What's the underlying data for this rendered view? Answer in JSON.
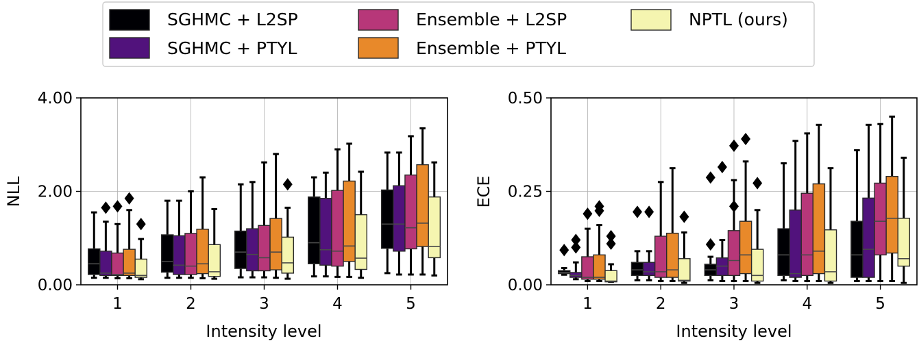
{
  "legend": {
    "entries": [
      {
        "label": "SGHMC + L2SP",
        "color": "#000004"
      },
      {
        "label": "SGHMC + PTYL",
        "color": "#51127c"
      },
      {
        "label": "Ensemble + L2SP",
        "color": "#b73779"
      },
      {
        "label": "Ensemble + PTYL",
        "color": "#e8892a"
      },
      {
        "label": "NPTL (ours)",
        "color": "#f5f5b0"
      }
    ]
  },
  "chart_data": [
    {
      "type": "box",
      "xlabel": "Intensity level",
      "ylabel": "NLL",
      "ylim": [
        0,
        4.0
      ],
      "yticks": [
        "0.00",
        "2.00",
        "4.00"
      ],
      "yticks_values": [
        0,
        2,
        4
      ],
      "categories": [
        "1",
        "2",
        "3",
        "4",
        "5"
      ],
      "grid": true,
      "series": [
        {
          "name": "SGHMC + L2SP",
          "color": "#000004",
          "boxes": [
            {
              "wlo": 0.15,
              "q1": 0.22,
              "med": 0.45,
              "q3": 0.77,
              "whi": 1.55,
              "fliers": []
            },
            {
              "wlo": 0.15,
              "q1": 0.27,
              "med": 0.5,
              "q3": 1.07,
              "whi": 1.8,
              "fliers": []
            },
            {
              "wlo": 0.16,
              "q1": 0.35,
              "med": 0.7,
              "q3": 1.15,
              "whi": 2.15,
              "fliers": []
            },
            {
              "wlo": 0.18,
              "q1": 0.45,
              "med": 0.9,
              "q3": 1.88,
              "whi": 2.3,
              "fliers": []
            },
            {
              "wlo": 0.25,
              "q1": 0.78,
              "med": 1.3,
              "q3": 2.03,
              "whi": 2.83,
              "fliers": []
            }
          ]
        },
        {
          "name": "SGHMC + PTYL",
          "color": "#51127c",
          "boxes": [
            {
              "wlo": 0.15,
              "q1": 0.2,
              "med": 0.25,
              "q3": 0.72,
              "whi": 1.35,
              "fliers": [
                1.65
              ]
            },
            {
              "wlo": 0.15,
              "q1": 0.22,
              "med": 0.42,
              "q3": 1.05,
              "whi": 1.8,
              "fliers": []
            },
            {
              "wlo": 0.16,
              "q1": 0.3,
              "med": 0.65,
              "q3": 1.2,
              "whi": 2.2,
              "fliers": []
            },
            {
              "wlo": 0.18,
              "q1": 0.42,
              "med": 0.75,
              "q3": 1.85,
              "whi": 2.4,
              "fliers": []
            },
            {
              "wlo": 0.22,
              "q1": 0.72,
              "med": 1.3,
              "q3": 2.12,
              "whi": 2.83,
              "fliers": []
            }
          ]
        },
        {
          "name": "Ensemble + L2SP",
          "color": "#b73779",
          "boxes": [
            {
              "wlo": 0.14,
              "q1": 0.2,
              "med": 0.22,
              "q3": 0.68,
              "whi": 1.3,
              "fliers": [
                1.68
              ]
            },
            {
              "wlo": 0.15,
              "q1": 0.22,
              "med": 0.4,
              "q3": 1.1,
              "whi": 2.0,
              "fliers": []
            },
            {
              "wlo": 0.16,
              "q1": 0.3,
              "med": 0.58,
              "q3": 1.27,
              "whi": 2.62,
              "fliers": []
            },
            {
              "wlo": 0.17,
              "q1": 0.4,
              "med": 0.72,
              "q3": 2.02,
              "whi": 2.9,
              "fliers": []
            },
            {
              "wlo": 0.22,
              "q1": 0.77,
              "med": 1.22,
              "q3": 2.35,
              "whi": 3.18,
              "fliers": []
            }
          ]
        },
        {
          "name": "Ensemble + PTYL",
          "color": "#e8892a",
          "boxes": [
            {
              "wlo": 0.14,
              "q1": 0.2,
              "med": 0.25,
              "q3": 0.76,
              "whi": 1.6,
              "fliers": [
                1.85
              ]
            },
            {
              "wlo": 0.14,
              "q1": 0.24,
              "med": 0.45,
              "q3": 1.19,
              "whi": 2.3,
              "fliers": []
            },
            {
              "wlo": 0.15,
              "q1": 0.32,
              "med": 0.7,
              "q3": 1.42,
              "whi": 2.8,
              "fliers": []
            },
            {
              "wlo": 0.17,
              "q1": 0.5,
              "med": 0.83,
              "q3": 2.22,
              "whi": 3.02,
              "fliers": []
            },
            {
              "wlo": 0.22,
              "q1": 0.82,
              "med": 1.32,
              "q3": 2.57,
              "whi": 3.35,
              "fliers": []
            }
          ]
        },
        {
          "name": "NPTL (ours)",
          "color": "#f5f5b0",
          "boxes": [
            {
              "wlo": 0.12,
              "q1": 0.16,
              "med": 0.2,
              "q3": 0.55,
              "whi": 0.98,
              "fliers": [
                1.3
              ]
            },
            {
              "wlo": 0.13,
              "q1": 0.18,
              "med": 0.28,
              "q3": 0.86,
              "whi": 1.62,
              "fliers": []
            },
            {
              "wlo": 0.13,
              "q1": 0.25,
              "med": 0.47,
              "q3": 1.02,
              "whi": 1.65,
              "fliers": [
                2.15
              ]
            },
            {
              "wlo": 0.15,
              "q1": 0.33,
              "med": 0.57,
              "q3": 1.5,
              "whi": 2.42,
              "fliers": []
            },
            {
              "wlo": 0.2,
              "q1": 0.58,
              "med": 0.82,
              "q3": 1.88,
              "whi": 2.62,
              "fliers": []
            }
          ]
        }
      ]
    },
    {
      "type": "box",
      "xlabel": "Intensity level",
      "ylabel": "ECE",
      "ylim": [
        0,
        0.5
      ],
      "yticks": [
        "0.00",
        "0.25",
        "0.50"
      ],
      "yticks_values": [
        0,
        0.25,
        0.5
      ],
      "categories": [
        "1",
        "2",
        "3",
        "4",
        "5"
      ],
      "grid": true,
      "series": [
        {
          "name": "SGHMC + L2SP",
          "color": "#000004",
          "boxes": [
            {
              "wlo": 0.027,
              "q1": 0.03,
              "med": 0.033,
              "q3": 0.038,
              "whi": 0.045,
              "fliers": [
                0.093
              ]
            },
            {
              "wlo": 0.012,
              "q1": 0.025,
              "med": 0.04,
              "q3": 0.06,
              "whi": 0.09,
              "fliers": [
                0.195
              ]
            },
            {
              "wlo": 0.012,
              "q1": 0.025,
              "med": 0.04,
              "q3": 0.055,
              "whi": 0.075,
              "fliers": [
                0.108,
                0.287
              ]
            },
            {
              "wlo": 0.012,
              "q1": 0.025,
              "med": 0.08,
              "q3": 0.15,
              "whi": 0.325,
              "fliers": []
            },
            {
              "wlo": 0.01,
              "q1": 0.02,
              "med": 0.08,
              "q3": 0.17,
              "whi": 0.36,
              "fliers": []
            }
          ]
        },
        {
          "name": "SGHMC + PTYL",
          "color": "#51127c",
          "boxes": [
            {
              "wlo": 0.015,
              "q1": 0.02,
              "med": 0.025,
              "q3": 0.033,
              "whi": 0.06,
              "fliers": [
                0.12,
                0.1
              ]
            },
            {
              "wlo": 0.012,
              "q1": 0.025,
              "med": 0.035,
              "q3": 0.06,
              "whi": 0.09,
              "fliers": [
                0.195
              ]
            },
            {
              "wlo": 0.01,
              "q1": 0.025,
              "med": 0.05,
              "q3": 0.072,
              "whi": 0.12,
              "fliers": [
                0.315
              ]
            },
            {
              "wlo": 0.01,
              "q1": 0.02,
              "med": 0.03,
              "q3": 0.2,
              "whi": 0.385,
              "fliers": []
            },
            {
              "wlo": 0.01,
              "q1": 0.02,
              "med": 0.095,
              "q3": 0.232,
              "whi": 0.428,
              "fliers": []
            }
          ]
        },
        {
          "name": "Ensemble + L2SP",
          "color": "#b73779",
          "boxes": [
            {
              "wlo": 0.01,
              "q1": 0.015,
              "med": 0.02,
              "q3": 0.075,
              "whi": 0.15,
              "fliers": [
                0.19
              ]
            },
            {
              "wlo": 0.01,
              "q1": 0.02,
              "med": 0.035,
              "q3": 0.13,
              "whi": 0.275,
              "fliers": []
            },
            {
              "wlo": 0.01,
              "q1": 0.025,
              "med": 0.065,
              "q3": 0.145,
              "whi": 0.28,
              "fliers": [
                0.21,
                0.372
              ]
            },
            {
              "wlo": 0.01,
              "q1": 0.025,
              "med": 0.08,
              "q3": 0.245,
              "whi": 0.405,
              "fliers": []
            },
            {
              "wlo": 0.01,
              "q1": 0.08,
              "med": 0.17,
              "q3": 0.272,
              "whi": 0.43,
              "fliers": []
            }
          ]
        },
        {
          "name": "Ensemble + PTYL",
          "color": "#e8892a",
          "boxes": [
            {
              "wlo": 0.01,
              "q1": 0.015,
              "med": 0.02,
              "q3": 0.08,
              "whi": 0.16,
              "fliers": [
                0.21,
                0.198
              ]
            },
            {
              "wlo": 0.01,
              "q1": 0.02,
              "med": 0.04,
              "q3": 0.138,
              "whi": 0.312,
              "fliers": []
            },
            {
              "wlo": 0.01,
              "q1": 0.03,
              "med": 0.08,
              "q3": 0.17,
              "whi": 0.33,
              "fliers": [
                0.39
              ]
            },
            {
              "wlo": 0.01,
              "q1": 0.03,
              "med": 0.09,
              "q3": 0.27,
              "whi": 0.428,
              "fliers": []
            },
            {
              "wlo": 0.01,
              "q1": 0.085,
              "med": 0.178,
              "q3": 0.29,
              "whi": 0.45,
              "fliers": []
            }
          ]
        },
        {
          "name": "NPTL (ours)",
          "color": "#f5f5b0",
          "boxes": [
            {
              "wlo": 0.008,
              "q1": 0.008,
              "med": 0.01,
              "q3": 0.038,
              "whi": 0.055,
              "fliers": [
                0.13,
                0.11
              ]
            },
            {
              "wlo": 0.005,
              "q1": 0.01,
              "med": 0.012,
              "q3": 0.07,
              "whi": 0.14,
              "fliers": [
                0.182
              ]
            },
            {
              "wlo": 0.005,
              "q1": 0.01,
              "med": 0.025,
              "q3": 0.095,
              "whi": 0.2,
              "fliers": [
                0.272
              ]
            },
            {
              "wlo": 0.005,
              "q1": 0.01,
              "med": 0.035,
              "q3": 0.147,
              "whi": 0.312,
              "fliers": []
            },
            {
              "wlo": 0.005,
              "q1": 0.05,
              "med": 0.07,
              "q3": 0.178,
              "whi": 0.34,
              "fliers": []
            }
          ]
        }
      ]
    }
  ]
}
